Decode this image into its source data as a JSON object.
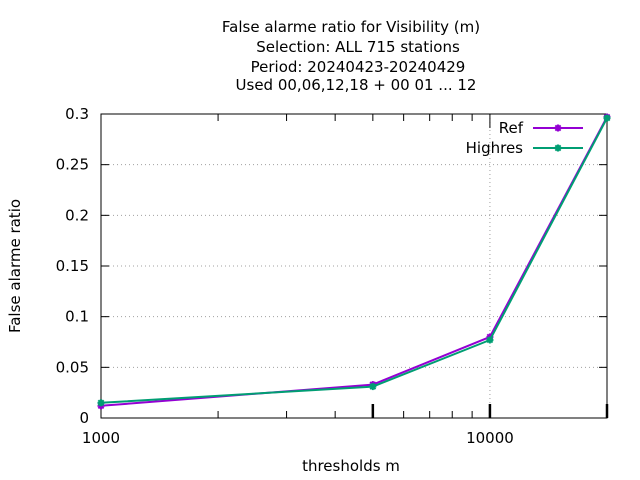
{
  "chart_data": {
    "type": "line",
    "title_lines": [
      "False alarme ratio  for Visibility (m)",
      "Selection: ALL    715 stations",
      "Period: 20240423-20240429",
      "Used  00,06,12,18 + 00 01 ... 12"
    ],
    "xlabel": "thresholds m",
    "ylabel": "False alarme ratio",
    "x_scale": "log",
    "xlim": [
      1000,
      20000
    ],
    "ylim": [
      0,
      0.3
    ],
    "x_tick_labels": [
      {
        "value": 1000,
        "label": "1000"
      },
      {
        "value": 10000,
        "label": "10000"
      }
    ],
    "y_ticks": [
      {
        "value": 0,
        "label": "0"
      },
      {
        "value": 0.05,
        "label": "0.05"
      },
      {
        "value": 0.1,
        "label": "0.1"
      },
      {
        "value": 0.15,
        "label": "0.15"
      },
      {
        "value": 0.2,
        "label": "0.2"
      },
      {
        "value": 0.25,
        "label": "0.25"
      },
      {
        "value": 0.3,
        "label": "0.3"
      }
    ],
    "grid": true,
    "legend_position": "top-right",
    "series": [
      {
        "name": "Ref",
        "color": "#9400d3",
        "x": [
          1000,
          5000,
          10000,
          20000
        ],
        "y": [
          0.012,
          0.033,
          0.08,
          0.297
        ]
      },
      {
        "name": "Highres",
        "color": "#009e73",
        "x": [
          1000,
          5000,
          10000,
          20000
        ],
        "y": [
          0.015,
          0.031,
          0.077,
          0.296
        ]
      }
    ]
  }
}
